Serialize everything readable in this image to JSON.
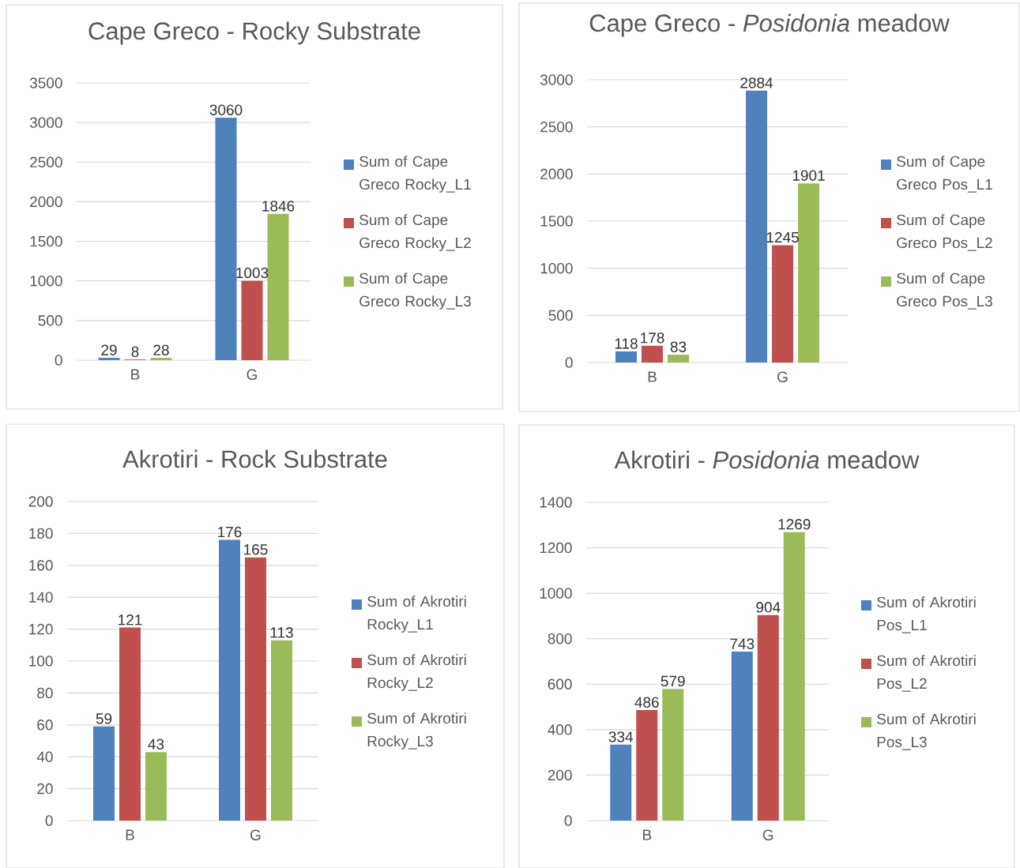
{
  "chart_data": [
    {
      "type": "bar",
      "title": "Cape Greco - Rocky Substrate",
      "categories": [
        "B",
        "G"
      ],
      "series": [
        {
          "name": "Sum of Cape Greco Rocky_L1",
          "color": "#4f81bd",
          "values": [
            29,
            3060
          ]
        },
        {
          "name": "Sum of Cape Greco Rocky_L2",
          "color": "#c0504d",
          "values": [
            8,
            1003
          ]
        },
        {
          "name": "Sum of Cape Greco Rocky_L3",
          "color": "#9bbb59",
          "values": [
            28,
            1846
          ]
        }
      ],
      "ylim": [
        0,
        3500
      ],
      "yticks": [
        0,
        500,
        1000,
        1500,
        2000,
        2500,
        3000,
        3500
      ],
      "grid": "y",
      "legend": "right",
      "data_labels": true
    },
    {
      "type": "bar",
      "title": "Cape Greco - *Posidonia* meadow",
      "categories": [
        "B",
        "G"
      ],
      "series": [
        {
          "name": "Sum of Cape Greco Pos_L1",
          "color": "#4f81bd",
          "values": [
            118,
            2884
          ]
        },
        {
          "name": "Sum of Cape Greco Pos_L2",
          "color": "#c0504d",
          "values": [
            178,
            1245
          ]
        },
        {
          "name": "Sum of Cape Greco Pos_L3",
          "color": "#9bbb59",
          "values": [
            83,
            1901
          ]
        }
      ],
      "ylim": [
        0,
        3000
      ],
      "yticks": [
        0,
        500,
        1000,
        1500,
        2000,
        2500,
        3000
      ],
      "grid": "y",
      "legend": "right",
      "data_labels": true
    },
    {
      "type": "bar",
      "title": "Akrotiri - Rock Substrate",
      "categories": [
        "B",
        "G"
      ],
      "series": [
        {
          "name": "Sum of Akrotiri Rocky_L1",
          "color": "#4f81bd",
          "values": [
            59,
            176
          ]
        },
        {
          "name": "Sum of Akrotiri Rocky_L2",
          "color": "#c0504d",
          "values": [
            121,
            165
          ]
        },
        {
          "name": "Sum of Akrotiri Rocky_L3",
          "color": "#9bbb59",
          "values": [
            43,
            113
          ]
        }
      ],
      "ylim": [
        0,
        200
      ],
      "yticks": [
        0,
        20,
        40,
        60,
        80,
        100,
        120,
        140,
        160,
        180,
        200
      ],
      "grid": "y",
      "legend": "right",
      "data_labels": true
    },
    {
      "type": "bar",
      "title": "Akrotiri - *Posidonia* meadow",
      "categories": [
        "B",
        "G"
      ],
      "series": [
        {
          "name": "Sum of Akrotiri Pos_L1",
          "color": "#4f81bd",
          "values": [
            334,
            743
          ]
        },
        {
          "name": "Sum of Akrotiri Pos_L2",
          "color": "#c0504d",
          "values": [
            486,
            904
          ]
        },
        {
          "name": "Sum of Akrotiri Pos_L3",
          "color": "#9bbb59",
          "values": [
            579,
            1269
          ]
        }
      ],
      "ylim": [
        0,
        1400
      ],
      "yticks": [
        0,
        200,
        400,
        600,
        800,
        1000,
        1200,
        1400
      ],
      "grid": "y",
      "legend": "right",
      "data_labels": true
    }
  ]
}
